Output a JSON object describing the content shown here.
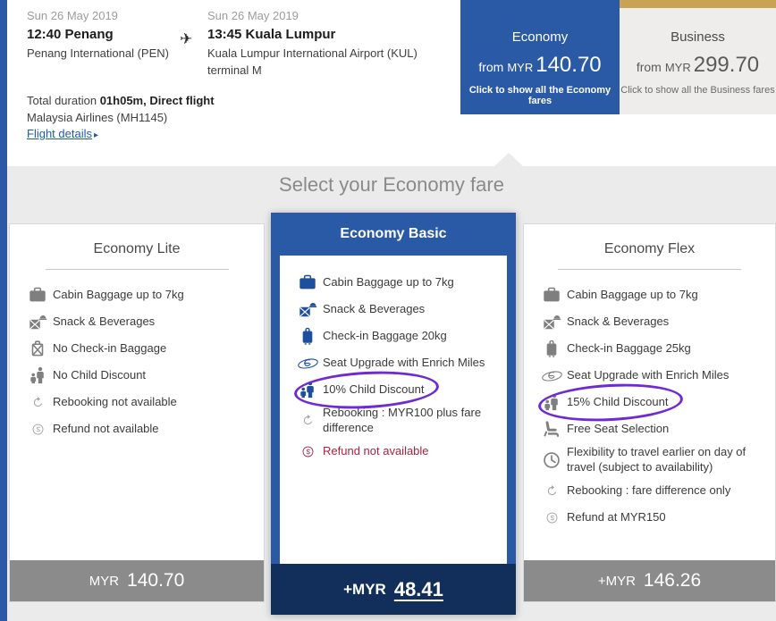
{
  "colors": {
    "accent_blue": "#2a5aa6",
    "navy": "#122e5a",
    "gold": "#c9a253",
    "panel_gray": "#ebebeb",
    "bar_gray": "#8b8b8b",
    "annotation_purple": "#6f2ad4",
    "danger_red": "#a82343"
  },
  "icons": {
    "plane": "✈",
    "caret": "▸"
  },
  "header": {
    "depart": {
      "date": "Sun 26 May 2019",
      "time": "12:40",
      "city": "Penang",
      "airport": "Penang International (PEN)"
    },
    "arrive": {
      "date": "Sun 26 May 2019",
      "time": "13:45",
      "city": "Kuala Lumpur",
      "airport": "Kuala Lumpur International Airport (KUL) terminal M"
    },
    "duration_label": "Total duration",
    "duration_value": "01h05m, Direct flight",
    "airline": "Malaysia Airlines (MH1145)",
    "flight_details": "Flight details"
  },
  "tabs": [
    {
      "label": "Economy",
      "from": "from",
      "currency": "MYR",
      "amount": "140.70",
      "hint": "Click to show all the Economy fares",
      "selected": true
    },
    {
      "label": "Business",
      "from": "from",
      "currency": "MYR",
      "amount": "299.70",
      "hint": "Click to show all the Business fares",
      "selected": false
    }
  ],
  "section_title": "Select your Economy fare",
  "cards": [
    {
      "name": "Economy Lite",
      "selected": false,
      "features": [
        {
          "icon": "cabin-baggage",
          "label": "Cabin Baggage up to 7kg"
        },
        {
          "icon": "meal",
          "label": "Snack & Beverages"
        },
        {
          "icon": "no-checkin-baggage",
          "label": "No Check-in Baggage"
        },
        {
          "icon": "child-discount",
          "label": "No Child Discount"
        },
        {
          "icon": "rebooking",
          "label": "Rebooking not available",
          "muted": true
        },
        {
          "icon": "refund",
          "label": "Refund not available",
          "muted": true
        }
      ],
      "price": {
        "currency": "MYR",
        "amount": "140.70"
      }
    },
    {
      "name": "Economy Basic",
      "selected": true,
      "features": [
        {
          "icon": "cabin-baggage",
          "label": "Cabin Baggage up to 7kg"
        },
        {
          "icon": "meal",
          "label": "Snack & Beverages"
        },
        {
          "icon": "checkin-baggage",
          "label": "Check-in Baggage 20kg"
        },
        {
          "icon": "enrich",
          "label": "Seat Upgrade with Enrich Miles"
        },
        {
          "icon": "child-discount",
          "label": "10% Child Discount",
          "circled": true
        },
        {
          "icon": "rebooking",
          "label": "Rebooking : MYR100 plus fare difference",
          "muted": true
        },
        {
          "icon": "refund",
          "label": "Refund not available",
          "danger": true
        }
      ],
      "price": {
        "currency": "+MYR",
        "amount": "48.41"
      }
    },
    {
      "name": "Economy Flex",
      "selected": false,
      "features": [
        {
          "icon": "cabin-baggage",
          "label": "Cabin Baggage up to 7kg"
        },
        {
          "icon": "meal",
          "label": "Snack & Beverages"
        },
        {
          "icon": "checkin-baggage",
          "label": "Check-in Baggage 25kg"
        },
        {
          "icon": "enrich",
          "label": "Seat Upgrade with Enrich Miles"
        },
        {
          "icon": "child-discount",
          "label": "15% Child Discount",
          "circled": true
        },
        {
          "icon": "seat",
          "label": "Free Seat Selection"
        },
        {
          "icon": "clock",
          "label": "Flexibility to travel earlier on day of travel (subject to availability)"
        },
        {
          "icon": "rebooking",
          "label": "Rebooking : fare difference only",
          "muted": true
        },
        {
          "icon": "refund",
          "label": "Refund at MYR150",
          "muted": true
        }
      ],
      "price": {
        "currency": "+MYR",
        "amount": "146.26"
      }
    }
  ]
}
